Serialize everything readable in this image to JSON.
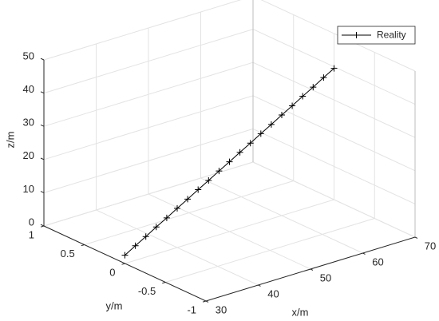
{
  "chart_data": {
    "type": "line3d",
    "xlabel": "x/m",
    "ylabel": "y/m",
    "zlabel": "z/m",
    "xlim": [
      30,
      70
    ],
    "ylim": [
      -1,
      1
    ],
    "zlim": [
      0,
      50
    ],
    "xticks": [
      30,
      40,
      50,
      60,
      70
    ],
    "yticks": [
      -1,
      -0.5,
      0,
      0.5,
      1
    ],
    "zticks": [
      0,
      10,
      20,
      30,
      40,
      50
    ],
    "grid": true,
    "legend_location": "northeast",
    "series": [
      {
        "name": "Reality",
        "color": "#000000",
        "marker": "+",
        "x": [
          30,
          32,
          34,
          36,
          38,
          40,
          42,
          44,
          46,
          48,
          50,
          52,
          54,
          56,
          58,
          60,
          62,
          64,
          66,
          68,
          70
        ],
        "y": [
          0,
          0,
          0,
          0,
          0,
          0,
          0,
          0,
          0,
          0,
          0,
          0,
          0,
          0,
          0,
          0,
          0,
          0,
          0,
          0,
          0
        ],
        "z": [
          2.5,
          4.4,
          6.2,
          8.1,
          9.9,
          11.8,
          13.6,
          15.5,
          17.3,
          19.2,
          21,
          22.9,
          24.7,
          26.6,
          28.4,
          30.3,
          32.1,
          34,
          35.8,
          37.7,
          39.5
        ]
      }
    ]
  }
}
